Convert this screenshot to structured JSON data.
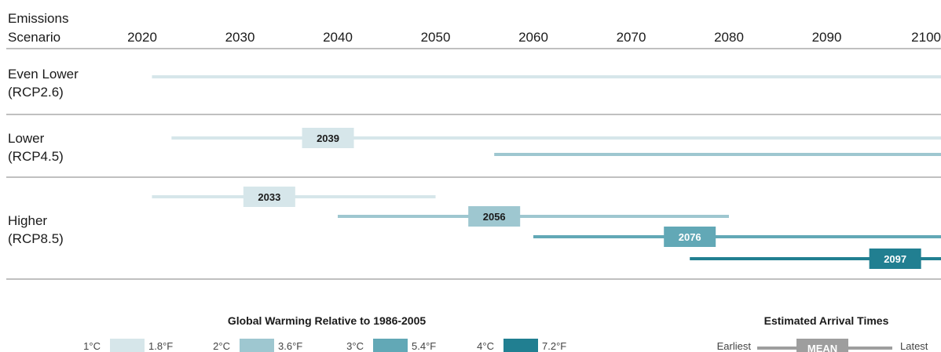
{
  "chart_data": {
    "type": "range-timeline",
    "header": [
      "Emissions",
      "Scenario"
    ],
    "x_ticks": [
      "2020",
      "2030",
      "2040",
      "2050",
      "2060",
      "2070",
      "2080",
      "2090",
      "2100"
    ],
    "xlim": [
      2020,
      2100
    ],
    "scenarios": [
      {
        "label": [
          "Even Lower",
          "(RCP2.6)"
        ],
        "ranges": [
          {
            "threshold": "1°C",
            "earliest": 2021,
            "latest": 2100,
            "mean": null
          }
        ]
      },
      {
        "label": [
          "Lower",
          "(RCP4.5)"
        ],
        "ranges": [
          {
            "threshold": "1°C",
            "earliest": 2023,
            "latest": 2100,
            "mean": 2039
          },
          {
            "threshold": "2°C",
            "earliest": 2056,
            "latest": 2100,
            "mean": null
          }
        ]
      },
      {
        "label": [
          "Higher",
          "(RCP8.5)"
        ],
        "ranges": [
          {
            "threshold": "1°C",
            "earliest": 2021,
            "latest": 2050,
            "mean": 2033
          },
          {
            "threshold": "2°C",
            "earliest": 2040,
            "latest": 2080,
            "mean": 2056
          },
          {
            "threshold": "3°C",
            "earliest": 2060,
            "latest": 2100,
            "mean": 2076
          },
          {
            "threshold": "4°C",
            "earliest": 2076,
            "latest": 2100,
            "mean": 2097
          }
        ]
      }
    ],
    "legend": {
      "title": "Global Warming Relative to 1986-2005",
      "items": [
        {
          "c": "1°C",
          "f": "1.8°F",
          "color": "#d6e6ea"
        },
        {
          "c": "2°C",
          "f": "3.6°F",
          "color": "#9ec7d0"
        },
        {
          "c": "3°C",
          "f": "5.4°F",
          "color": "#62a8b6"
        },
        {
          "c": "4°C",
          "f": "7.2°F",
          "color": "#217f91"
        }
      ]
    },
    "arrival_legend": {
      "title": "Estimated Arrival Times",
      "earliest": "Earliest",
      "mean": "MEAN",
      "latest": "Latest",
      "color": "#9e9e9e"
    },
    "grid": false,
    "colors": {
      "separator": "#9a9a9a",
      "mean_text_dark": "#1a1a1a",
      "mean_text_light": "#ffffff"
    }
  }
}
